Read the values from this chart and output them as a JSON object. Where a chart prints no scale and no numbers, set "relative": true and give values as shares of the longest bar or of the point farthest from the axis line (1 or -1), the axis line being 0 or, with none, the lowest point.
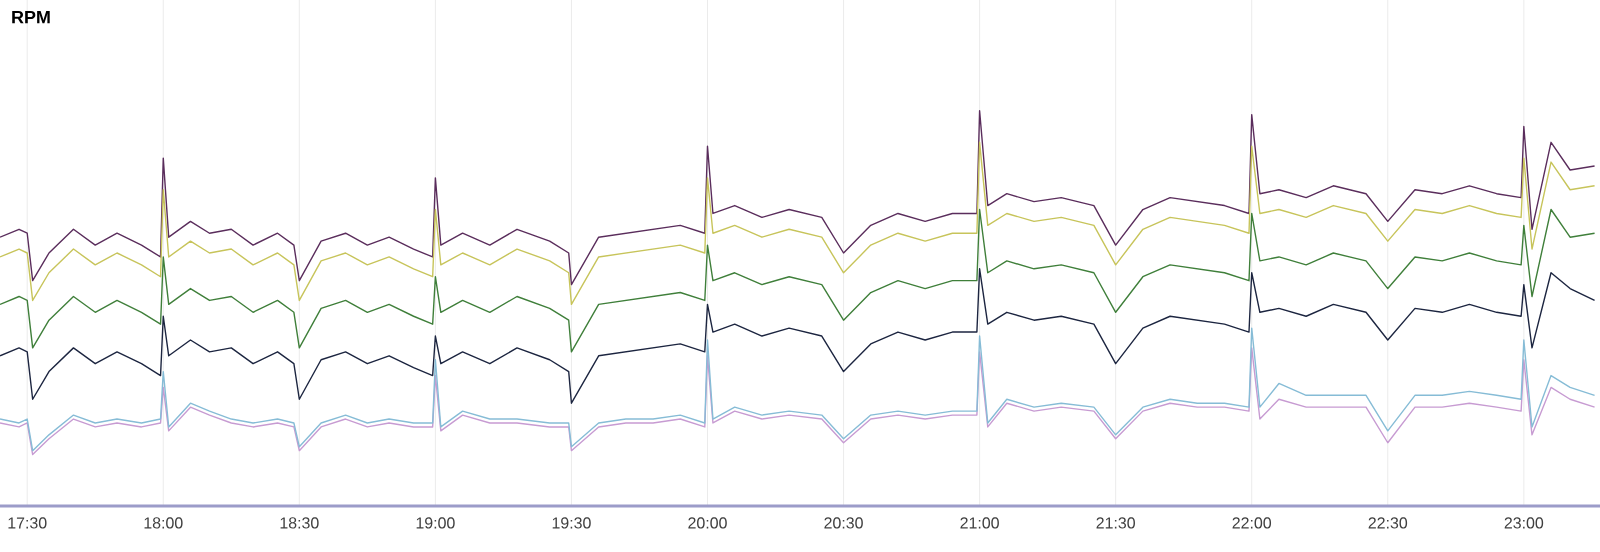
{
  "chart_data": {
    "type": "line",
    "title": "RPM",
    "relative": true,
    "grid": "x",
    "marker": "none",
    "line_style": "solid",
    "x": [
      17.4,
      17.47,
      17.5,
      17.52,
      17.58,
      17.67,
      17.75,
      17.83,
      17.92,
      17.99,
      18.0,
      18.02,
      18.1,
      18.17,
      18.25,
      18.33,
      18.42,
      18.48,
      18.5,
      18.58,
      18.67,
      18.75,
      18.83,
      18.92,
      18.99,
      19.0,
      19.02,
      19.1,
      19.2,
      19.3,
      19.42,
      19.49,
      19.5,
      19.6,
      19.7,
      19.8,
      19.9,
      19.99,
      20.0,
      20.02,
      20.1,
      20.2,
      20.3,
      20.42,
      20.5,
      20.6,
      20.7,
      20.8,
      20.9,
      20.99,
      21.0,
      21.03,
      21.1,
      21.2,
      21.3,
      21.42,
      21.5,
      21.6,
      21.7,
      21.8,
      21.9,
      21.99,
      22.0,
      22.03,
      22.1,
      22.2,
      22.3,
      22.42,
      22.5,
      22.6,
      22.7,
      22.8,
      22.9,
      22.99,
      23.0,
      23.03,
      23.1,
      23.17,
      23.26
    ],
    "xlim": [
      17.4,
      23.28
    ],
    "xticks": [
      {
        "value": 17.5,
        "label": "17:30"
      },
      {
        "value": 18,
        "label": "18:00"
      },
      {
        "value": 18.5,
        "label": "18:30"
      },
      {
        "value": 19,
        "label": "19:00"
      },
      {
        "value": 19.5,
        "label": "19:30"
      },
      {
        "value": 20,
        "label": "20:00"
      },
      {
        "value": 20.5,
        "label": "20:30"
      },
      {
        "value": 21,
        "label": "21:00"
      },
      {
        "value": 21.5,
        "label": "21:30"
      },
      {
        "value": 22,
        "label": "22:00"
      },
      {
        "value": 22.5,
        "label": "22:30"
      },
      {
        "value": 23,
        "label": "23:00"
      }
    ],
    "series": [
      {
        "color": "#5a2d5c",
        "values": [
          0.68,
          0.7,
          0.69,
          0.57,
          0.64,
          0.7,
          0.66,
          0.69,
          0.66,
          0.63,
          0.88,
          0.68,
          0.72,
          0.69,
          0.7,
          0.66,
          0.69,
          0.66,
          0.57,
          0.67,
          0.69,
          0.66,
          0.68,
          0.65,
          0.63,
          0.83,
          0.66,
          0.69,
          0.66,
          0.7,
          0.67,
          0.64,
          0.56,
          0.68,
          0.69,
          0.7,
          0.71,
          0.69,
          0.91,
          0.74,
          0.76,
          0.73,
          0.75,
          0.73,
          0.64,
          0.71,
          0.74,
          0.72,
          0.74,
          0.74,
          1.0,
          0.76,
          0.79,
          0.77,
          0.78,
          0.76,
          0.66,
          0.75,
          0.78,
          0.77,
          0.76,
          0.74,
          0.99,
          0.79,
          0.8,
          0.78,
          0.81,
          0.79,
          0.72,
          0.8,
          0.79,
          0.81,
          0.79,
          0.78,
          0.96,
          0.7,
          0.92,
          0.85,
          0.86
        ]
      },
      {
        "color": "#c7c45a",
        "values": [
          0.63,
          0.65,
          0.64,
          0.52,
          0.59,
          0.65,
          0.61,
          0.64,
          0.61,
          0.58,
          0.8,
          0.63,
          0.67,
          0.64,
          0.65,
          0.61,
          0.64,
          0.61,
          0.52,
          0.62,
          0.64,
          0.61,
          0.63,
          0.6,
          0.58,
          0.75,
          0.61,
          0.64,
          0.61,
          0.65,
          0.62,
          0.59,
          0.51,
          0.63,
          0.64,
          0.65,
          0.66,
          0.64,
          0.83,
          0.69,
          0.71,
          0.68,
          0.7,
          0.68,
          0.59,
          0.66,
          0.69,
          0.67,
          0.69,
          0.69,
          0.92,
          0.71,
          0.74,
          0.72,
          0.73,
          0.71,
          0.61,
          0.7,
          0.73,
          0.72,
          0.71,
          0.69,
          0.91,
          0.74,
          0.75,
          0.73,
          0.76,
          0.74,
          0.67,
          0.75,
          0.74,
          0.76,
          0.74,
          0.73,
          0.88,
          0.65,
          0.87,
          0.8,
          0.81
        ]
      },
      {
        "color": "#3f7f3a",
        "values": [
          0.51,
          0.53,
          0.52,
          0.4,
          0.47,
          0.53,
          0.49,
          0.52,
          0.49,
          0.46,
          0.63,
          0.51,
          0.55,
          0.52,
          0.53,
          0.49,
          0.52,
          0.49,
          0.4,
          0.5,
          0.52,
          0.49,
          0.51,
          0.48,
          0.46,
          0.58,
          0.49,
          0.52,
          0.49,
          0.53,
          0.5,
          0.47,
          0.39,
          0.51,
          0.52,
          0.53,
          0.54,
          0.52,
          0.66,
          0.57,
          0.59,
          0.56,
          0.58,
          0.56,
          0.47,
          0.54,
          0.57,
          0.55,
          0.57,
          0.57,
          0.75,
          0.59,
          0.62,
          0.6,
          0.61,
          0.59,
          0.49,
          0.58,
          0.61,
          0.6,
          0.59,
          0.57,
          0.74,
          0.62,
          0.63,
          0.61,
          0.64,
          0.62,
          0.55,
          0.63,
          0.62,
          0.64,
          0.62,
          0.61,
          0.71,
          0.53,
          0.75,
          0.68,
          0.69
        ]
      },
      {
        "color": "#1c2540",
        "values": [
          0.38,
          0.4,
          0.39,
          0.27,
          0.34,
          0.4,
          0.36,
          0.39,
          0.36,
          0.33,
          0.48,
          0.38,
          0.42,
          0.39,
          0.4,
          0.36,
          0.39,
          0.36,
          0.27,
          0.37,
          0.39,
          0.36,
          0.38,
          0.35,
          0.33,
          0.43,
          0.36,
          0.39,
          0.36,
          0.4,
          0.37,
          0.34,
          0.26,
          0.38,
          0.39,
          0.4,
          0.41,
          0.39,
          0.51,
          0.44,
          0.46,
          0.43,
          0.45,
          0.43,
          0.34,
          0.41,
          0.44,
          0.42,
          0.44,
          0.44,
          0.6,
          0.46,
          0.49,
          0.47,
          0.48,
          0.46,
          0.36,
          0.45,
          0.48,
          0.47,
          0.46,
          0.44,
          0.59,
          0.49,
          0.5,
          0.48,
          0.51,
          0.49,
          0.42,
          0.5,
          0.49,
          0.51,
          0.49,
          0.48,
          0.56,
          0.4,
          0.59,
          0.55,
          0.52
        ]
      },
      {
        "color": "#c79bd2",
        "values": [
          0.21,
          0.2,
          0.21,
          0.13,
          0.17,
          0.22,
          0.2,
          0.21,
          0.2,
          0.21,
          0.3,
          0.19,
          0.25,
          0.23,
          0.21,
          0.2,
          0.21,
          0.2,
          0.14,
          0.2,
          0.22,
          0.2,
          0.21,
          0.2,
          0.2,
          0.33,
          0.19,
          0.23,
          0.21,
          0.21,
          0.2,
          0.2,
          0.14,
          0.2,
          0.21,
          0.21,
          0.22,
          0.2,
          0.38,
          0.21,
          0.24,
          0.22,
          0.23,
          0.22,
          0.16,
          0.22,
          0.23,
          0.22,
          0.23,
          0.23,
          0.39,
          0.2,
          0.26,
          0.24,
          0.25,
          0.24,
          0.17,
          0.24,
          0.26,
          0.25,
          0.25,
          0.24,
          0.4,
          0.22,
          0.27,
          0.25,
          0.25,
          0.25,
          0.16,
          0.25,
          0.25,
          0.26,
          0.25,
          0.24,
          0.37,
          0.18,
          0.3,
          0.27,
          0.25
        ]
      },
      {
        "color": "#86bcd6",
        "values": [
          0.22,
          0.21,
          0.22,
          0.14,
          0.18,
          0.23,
          0.21,
          0.22,
          0.21,
          0.22,
          0.34,
          0.2,
          0.26,
          0.24,
          0.22,
          0.21,
          0.22,
          0.21,
          0.15,
          0.21,
          0.23,
          0.21,
          0.22,
          0.21,
          0.21,
          0.37,
          0.2,
          0.24,
          0.22,
          0.22,
          0.21,
          0.21,
          0.15,
          0.21,
          0.22,
          0.22,
          0.23,
          0.21,
          0.42,
          0.22,
          0.25,
          0.23,
          0.24,
          0.23,
          0.17,
          0.23,
          0.24,
          0.23,
          0.24,
          0.24,
          0.43,
          0.21,
          0.27,
          0.25,
          0.26,
          0.25,
          0.18,
          0.25,
          0.27,
          0.26,
          0.26,
          0.25,
          0.45,
          0.25,
          0.31,
          0.28,
          0.28,
          0.28,
          0.19,
          0.28,
          0.28,
          0.29,
          0.28,
          0.27,
          0.42,
          0.2,
          0.33,
          0.3,
          0.28
        ]
      }
    ]
  }
}
